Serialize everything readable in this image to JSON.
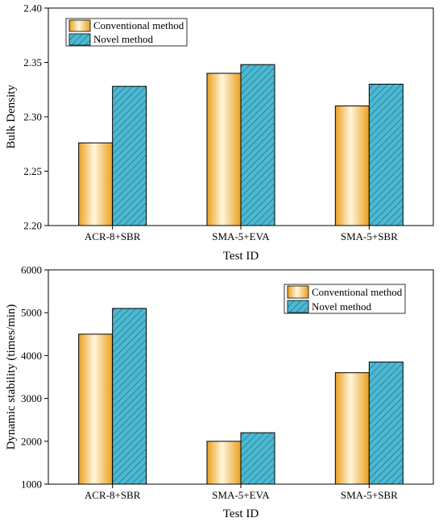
{
  "colors": {
    "conventional_light": "#fff6dc",
    "conventional_dark": "#e9a020",
    "novel_fill": "#4bb9d2",
    "novel_hatch": "#1f5f72",
    "outline": "#000000"
  },
  "chart_data": [
    {
      "type": "bar",
      "categories": [
        "ACR-8+SBR",
        "SMA-5+EVA",
        "SMA-5+SBR"
      ],
      "series": [
        {
          "name": "Conventional method",
          "values": [
            2.276,
            2.34,
            2.31
          ]
        },
        {
          "name": "Novel method",
          "values": [
            2.328,
            2.348,
            2.33
          ]
        }
      ],
      "xlabel": "Test ID",
      "ylabel": "Bulk Density",
      "ylim": [
        2.2,
        2.4
      ],
      "yticks": [
        "2.20",
        "2.25",
        "2.30",
        "2.35",
        "2.40"
      ],
      "legend": "top-left",
      "grid": false
    },
    {
      "type": "bar",
      "categories": [
        "ACR-8+SBR",
        "SMA-5+EVA",
        "SMA-5+SBR"
      ],
      "series": [
        {
          "name": "Conventional method",
          "values": [
            4500,
            2000,
            3600
          ]
        },
        {
          "name": "Novel method",
          "values": [
            5100,
            2200,
            3850
          ]
        }
      ],
      "xlabel": "Test ID",
      "ylabel": "Dynamic stability (times/min)",
      "ylim": [
        1000,
        6000
      ],
      "yticks": [
        "1000",
        "2000",
        "3000",
        "4000",
        "5000",
        "6000"
      ],
      "legend": "top-right",
      "grid": false
    }
  ]
}
